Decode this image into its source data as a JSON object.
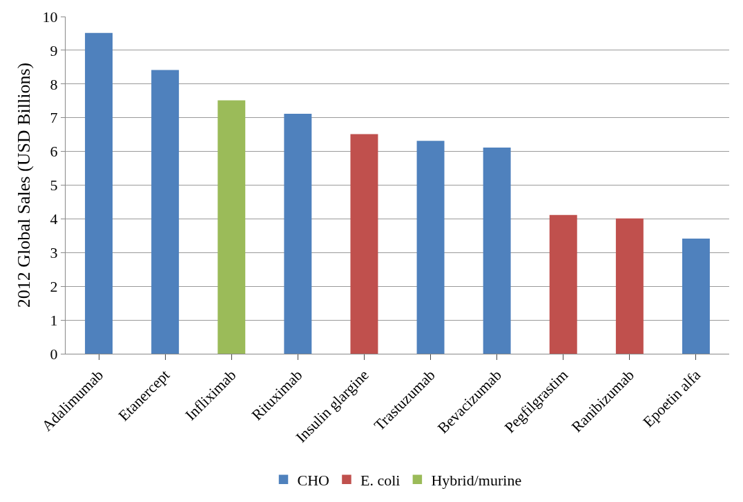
{
  "chart_data": {
    "type": "bar",
    "ylabel": "2012 Global Sales (USD Billions)",
    "categories": [
      "Adalimumab",
      "Etanercept",
      "Infliximab",
      "Rituximab",
      "Insulin glargine",
      "Trastuzumab",
      "Bevacizumab",
      "Pegfilgrastim",
      "Ranibizumab",
      "Epoetin alfa"
    ],
    "series": [
      {
        "name": "CHO",
        "color": "#4f81bd",
        "values": [
          9.5,
          8.4,
          null,
          7.1,
          null,
          6.3,
          6.1,
          null,
          null,
          3.4
        ]
      },
      {
        "name": "E. coli",
        "color": "#c0504d",
        "values": [
          null,
          null,
          null,
          null,
          6.5,
          null,
          null,
          4.1,
          4.0,
          null
        ]
      },
      {
        "name": "Hybrid/murine",
        "color": "#9bbb59",
        "values": [
          null,
          null,
          7.5,
          null,
          null,
          null,
          null,
          null,
          null,
          null
        ]
      }
    ],
    "ylim": [
      0,
      10
    ],
    "yticks": [
      0,
      1,
      2,
      3,
      4,
      5,
      6,
      7,
      8,
      9,
      10
    ],
    "grid": "y",
    "legend": "bottom"
  }
}
